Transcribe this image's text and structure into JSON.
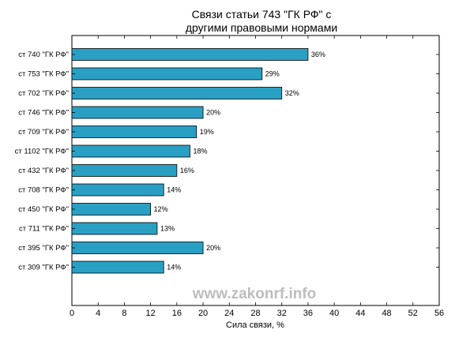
{
  "chart_data": {
    "type": "bar",
    "orientation": "horizontal",
    "title_lines": [
      "Связи статьи 743 \"ГК РФ\" с",
      "другими правовыми нормами"
    ],
    "xlabel": "Сила связи, %",
    "ylabel": "",
    "xlim": [
      0,
      56
    ],
    "xticks": [
      0,
      4,
      8,
      12,
      16,
      20,
      24,
      28,
      32,
      36,
      40,
      44,
      48,
      52,
      56
    ],
    "grid": false,
    "bar_color": "#2a9fc4",
    "categories": [
      "ст 740 \"ГК РФ\"",
      "ст 753 \"ГК РФ\"",
      "ст 702 \"ГК РФ\"",
      "ст 746 \"ГК РФ\"",
      "ст 709 \"ГК РФ\"",
      "ст 1102 \"ГК РФ\"",
      "ст 432 \"ГК РФ\"",
      "ст 708 \"ГК РФ\"",
      "ст 450 \"ГК РФ\"",
      "ст 711 \"ГК РФ\"",
      "ст 395 \"ГК РФ\"",
      "ст 309 \"ГК РФ\""
    ],
    "values": [
      36,
      29,
      32,
      20,
      19,
      18,
      16,
      14,
      12,
      13,
      20,
      14
    ],
    "value_labels": [
      "36%",
      "29%",
      "32%",
      "20%",
      "19%",
      "18%",
      "16%",
      "14%",
      "12%",
      "13%",
      "20%",
      "14%"
    ]
  },
  "watermark": "www.zakonrf.info"
}
